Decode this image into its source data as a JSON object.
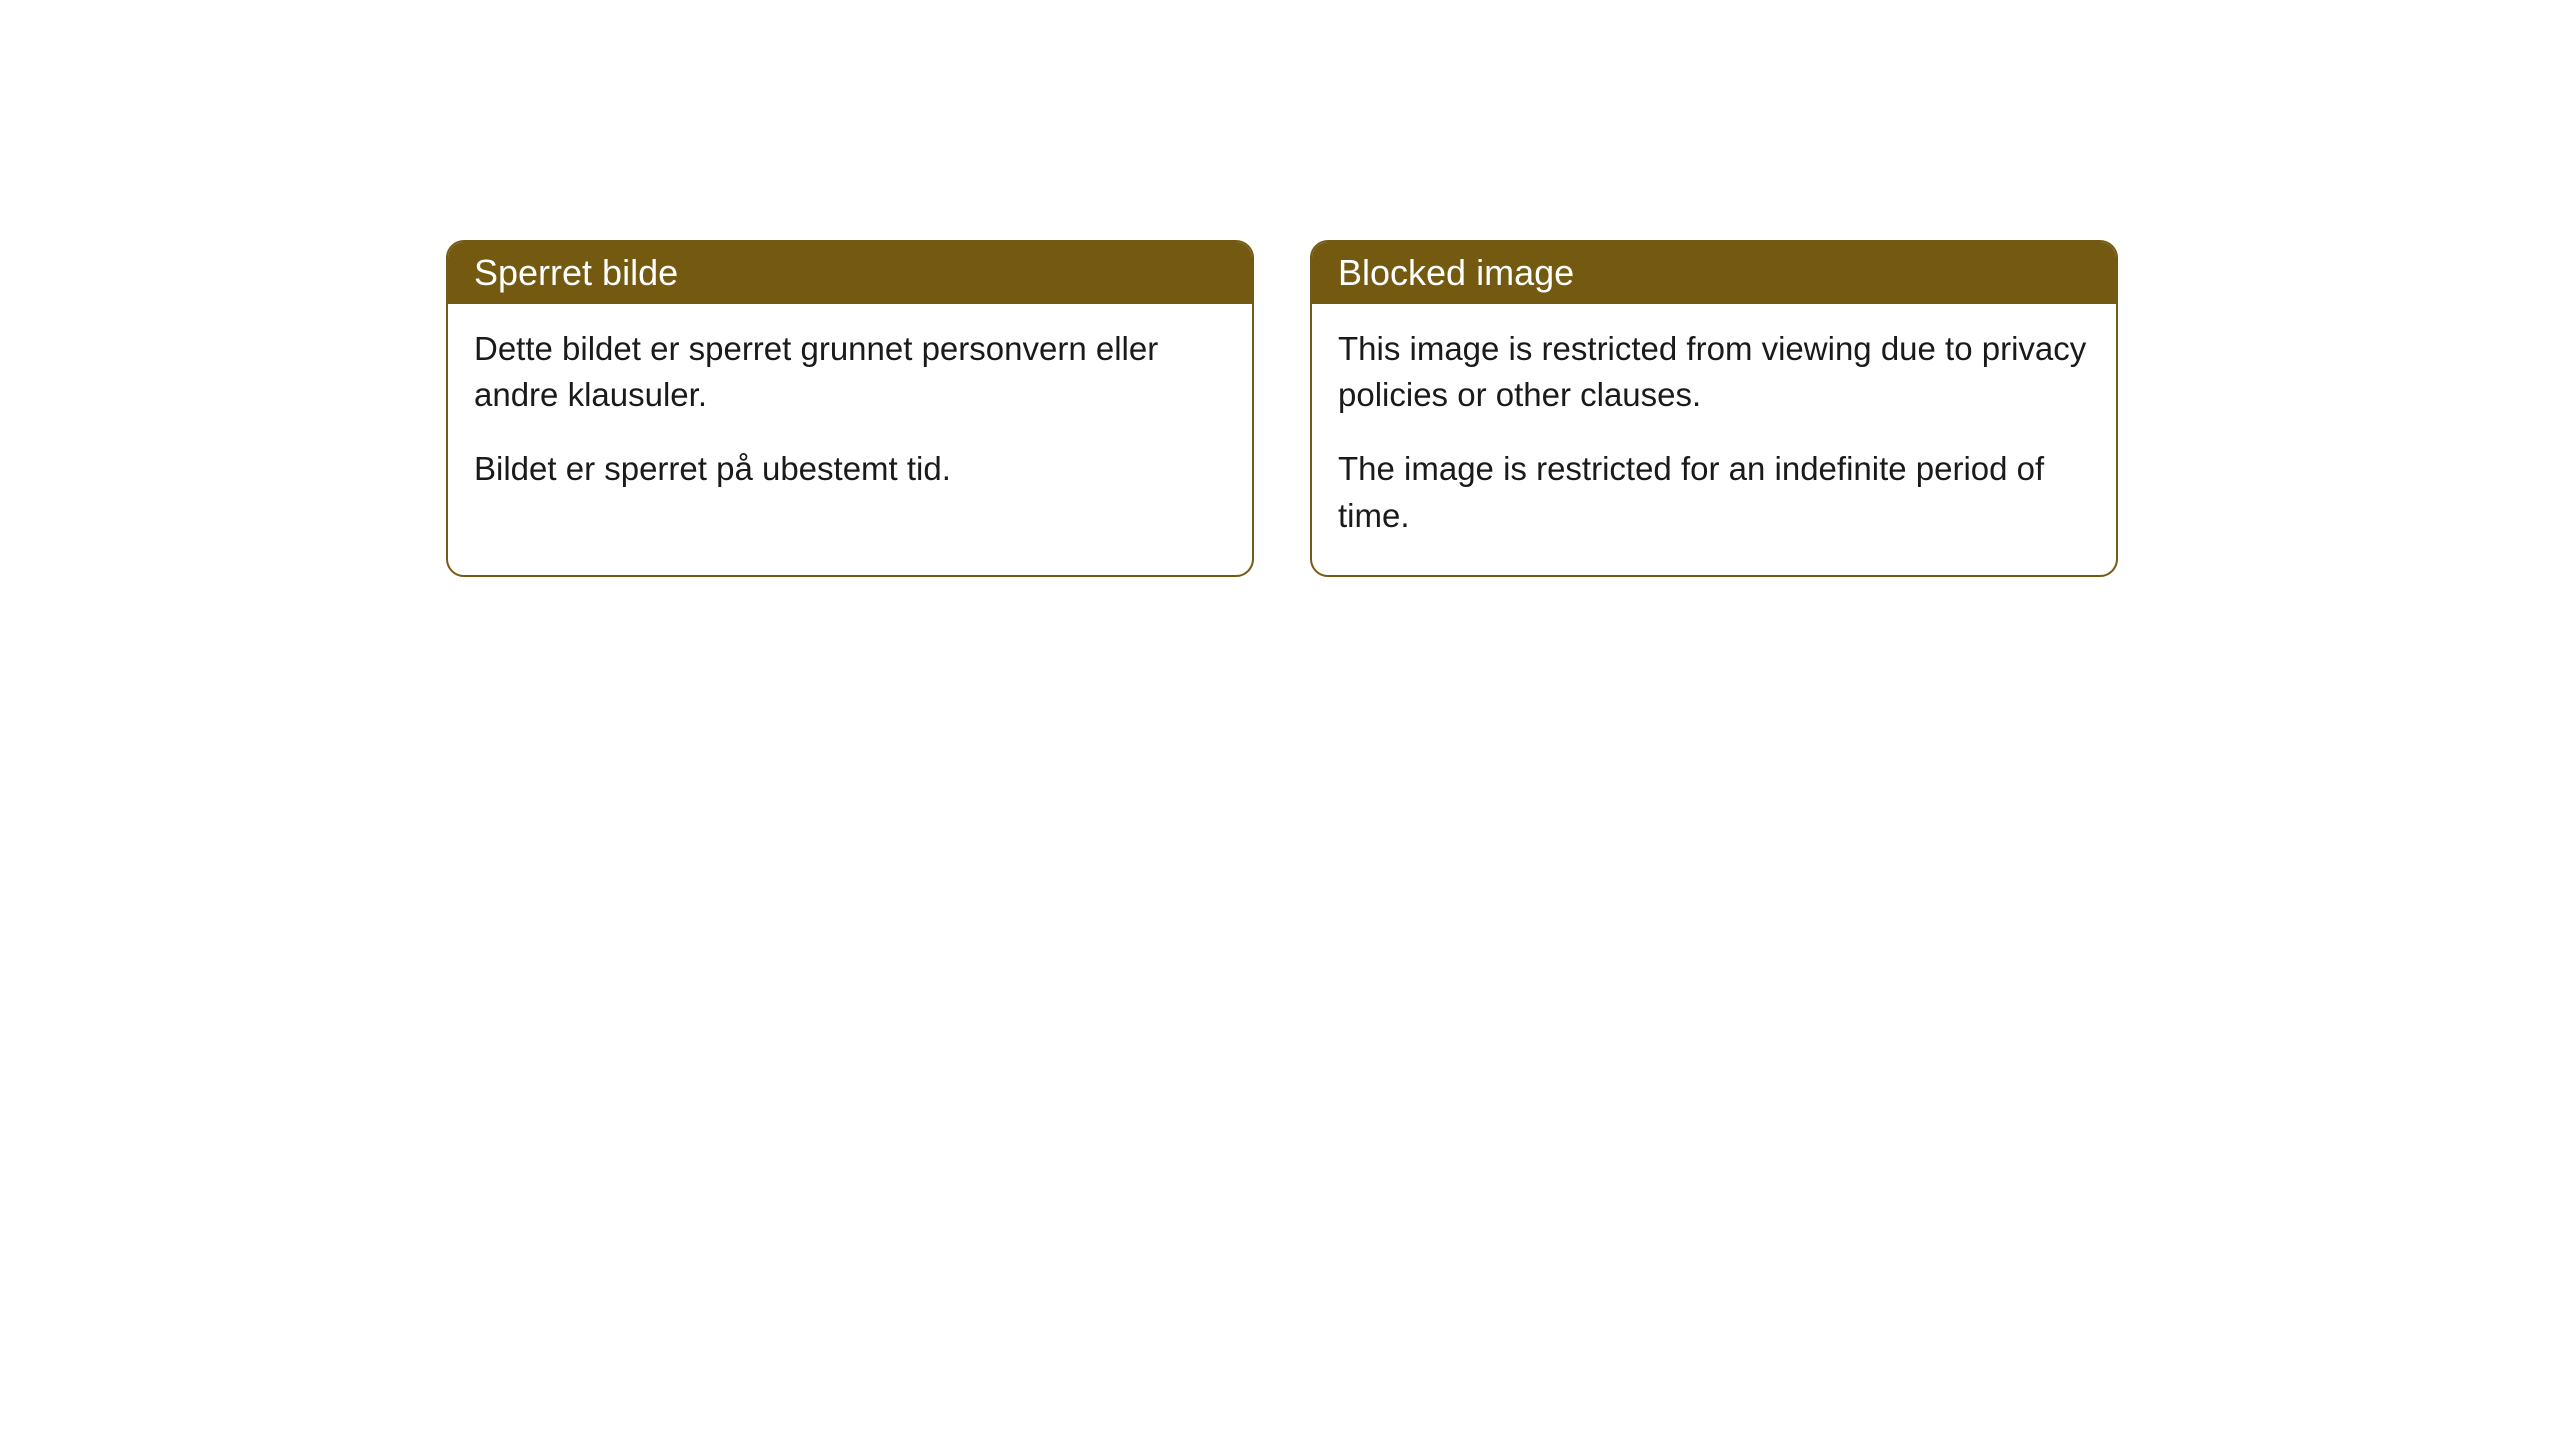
{
  "cards": [
    {
      "title": "Sperret bilde",
      "paragraph1": "Dette bildet er sperret grunnet personvern eller andre klausuler.",
      "paragraph2": "Bildet er sperret på ubestemt tid."
    },
    {
      "title": "Blocked image",
      "paragraph1": "This image is restricted from viewing due to privacy policies or other clauses.",
      "paragraph2": "The image is restricted for an indefinite period of time."
    }
  ],
  "styling": {
    "header_background": "#745a11",
    "header_text_color": "#ffffff",
    "border_color": "#745a11",
    "body_background": "#ffffff",
    "body_text_color": "#1a1a1a",
    "border_radius": 18,
    "header_fontsize": 36,
    "body_fontsize": 33
  }
}
